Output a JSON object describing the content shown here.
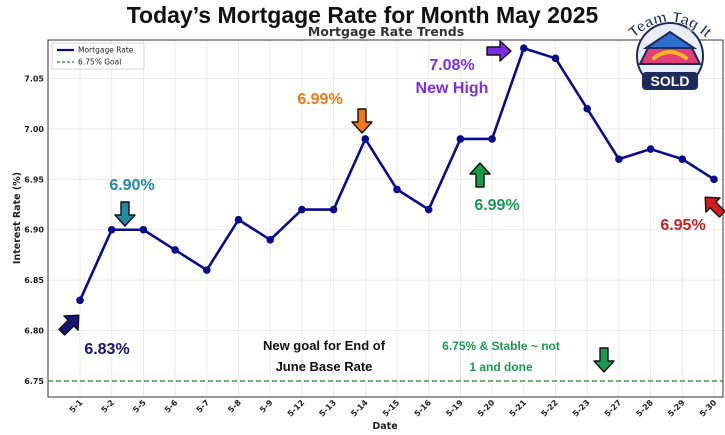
{
  "page": {
    "title": "Today’s Mortgage Rate for Month May 2025"
  },
  "chart_data": {
    "type": "line",
    "title": "Mortgage Rate Trends",
    "xlabel": "Date",
    "ylabel": "Interest Rate (%)",
    "categories": [
      "5-1",
      "5-2",
      "5-5",
      "5-6",
      "5-7",
      "5-8",
      "5-9",
      "5-12",
      "5-13",
      "5-14",
      "5-15",
      "5-16",
      "5-19",
      "5-20",
      "5-21",
      "5-22",
      "5-23",
      "5-27",
      "5-28",
      "5-29",
      "5-30"
    ],
    "series": [
      {
        "name": "Mortgage Rate",
        "color": "#0a0a8c",
        "values": [
          6.83,
          6.9,
          6.9,
          6.88,
          6.86,
          6.91,
          6.89,
          6.92,
          6.92,
          6.99,
          6.94,
          6.92,
          6.99,
          6.99,
          7.08,
          7.07,
          7.02,
          6.97,
          6.98,
          6.97,
          6.95
        ]
      }
    ],
    "reference_lines": [
      {
        "name": "6.75% Goal",
        "value": 6.75,
        "color": "#2e7d32",
        "style": "dashed"
      }
    ],
    "ylim": [
      6.75,
      7.1
    ],
    "yticks": [
      "6.75",
      "6.80",
      "6.85",
      "6.90",
      "6.95",
      "7.00",
      "7.05"
    ],
    "grid": true,
    "legend_position": "top-left",
    "annotations": [
      {
        "id": "a1",
        "lines": [
          "6.83%"
        ],
        "color": "#141478"
      },
      {
        "id": "a2",
        "lines": [
          "6.90%"
        ],
        "color": "#1f8aa0"
      },
      {
        "id": "a3",
        "lines": [
          "6.99%"
        ],
        "color": "#f07818"
      },
      {
        "id": "a4",
        "lines": [
          "7.08%",
          "New High"
        ],
        "color": "#7a2ee6"
      },
      {
        "id": "a5",
        "lines": [
          "6.99%"
        ],
        "color": "#1a9a50"
      },
      {
        "id": "a6",
        "lines": [
          "6.95%"
        ],
        "color": "#cc1f1f"
      },
      {
        "id": "a7",
        "lines": [
          "New goal for End of",
          "June Base Rate"
        ],
        "color": "#111111"
      },
      {
        "id": "a8",
        "lines": [
          "6.75% & Stable ~ not",
          "1 and done"
        ],
        "color": "#1a9a50"
      }
    ],
    "arrows": [
      {
        "id": "ar1",
        "direction": "up-right",
        "color": "#141478"
      },
      {
        "id": "ar2",
        "direction": "down",
        "color": "#1f8aa0"
      },
      {
        "id": "ar3",
        "direction": "down",
        "color": "#f07818"
      },
      {
        "id": "ar4",
        "direction": "right",
        "color": "#7a2ee6"
      },
      {
        "id": "ar5",
        "direction": "up",
        "color": "#1a9a50"
      },
      {
        "id": "ar6",
        "direction": "up-left",
        "color": "#cc1f1f"
      },
      {
        "id": "ar7",
        "direction": "down",
        "color": "#1a9a50"
      }
    ]
  },
  "logo": {
    "top_text": "Team Tag It",
    "bottom_text": "SOLD",
    "colors": {
      "pink": "#e0407a",
      "navy": "#1c2b5a",
      "blue": "#2f6fd0",
      "gold": "#f2b81a"
    }
  }
}
